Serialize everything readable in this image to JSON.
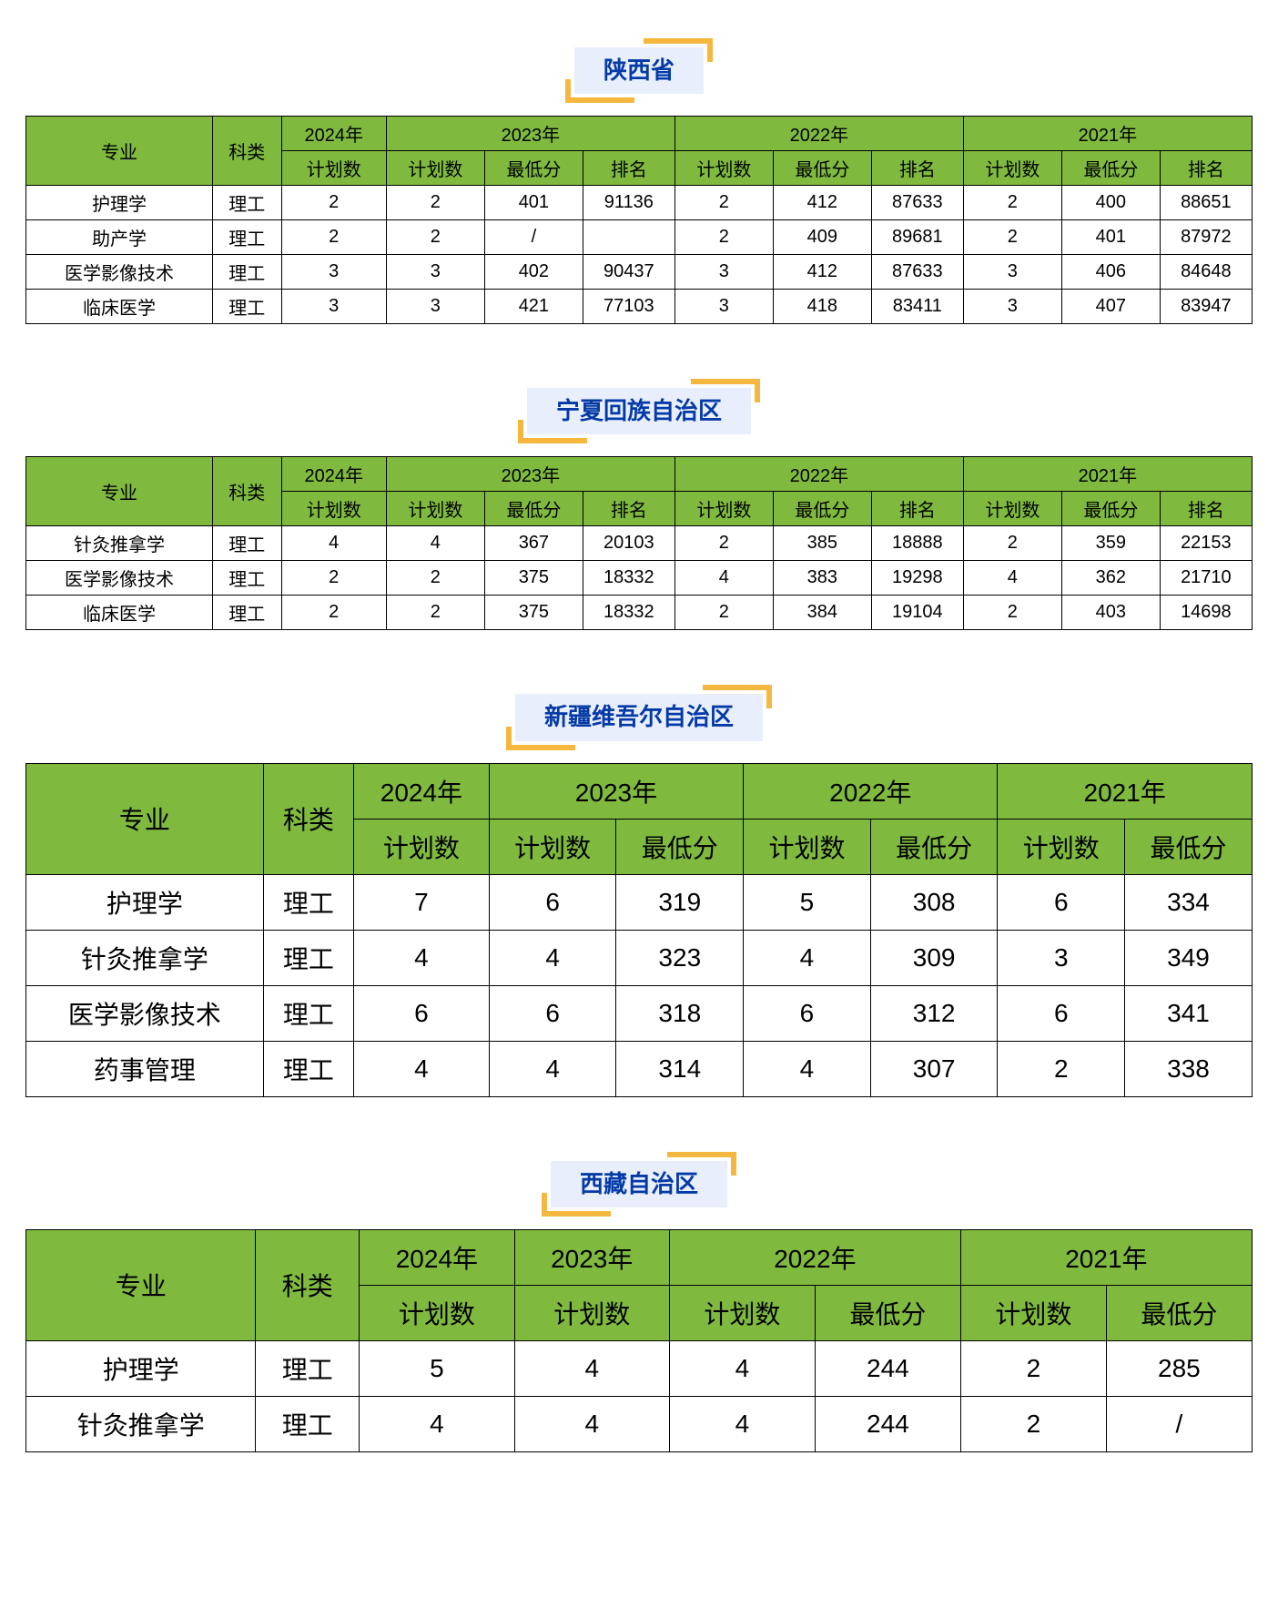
{
  "labels": {
    "major": "专业",
    "category": "科类",
    "plan": "计划数",
    "min_score": "最低分",
    "rank": "排名",
    "y2024": "2024年",
    "y2023": "2023年",
    "y2022": "2022年",
    "y2021": "2021年"
  },
  "category": "理工",
  "colors": {
    "header_bg": "#7fba3f",
    "title_bg": "#e9eefc",
    "title_text": "#043aa6",
    "corner": "#f6b73e"
  },
  "sections": [
    {
      "title": "陕西省",
      "size": "small",
      "years_have_rank": true,
      "rows": [
        {
          "major": "护理学",
          "p24": "2",
          "p23": "2",
          "s23": "401",
          "r23": "91136",
          "p22": "2",
          "s22": "412",
          "r22": "87633",
          "p21": "2",
          "s21": "400",
          "r21": "88651"
        },
        {
          "major": "助产学",
          "p24": "2",
          "p23": "2",
          "s23": "/",
          "r23": "",
          "p22": "2",
          "s22": "409",
          "r22": "89681",
          "p21": "2",
          "s21": "401",
          "r21": "87972"
        },
        {
          "major": "医学影像技术",
          "p24": "3",
          "p23": "3",
          "s23": "402",
          "r23": "90437",
          "p22": "3",
          "s22": "412",
          "r22": "87633",
          "p21": "3",
          "s21": "406",
          "r21": "84648"
        },
        {
          "major": "临床医学",
          "p24": "3",
          "p23": "3",
          "s23": "421",
          "r23": "77103",
          "p22": "3",
          "s22": "418",
          "r22": "83411",
          "p21": "3",
          "s21": "407",
          "r21": "83947"
        }
      ]
    },
    {
      "title": "宁夏回族自治区",
      "size": "small",
      "years_have_rank": true,
      "rows": [
        {
          "major": "针灸推拿学",
          "p24": "4",
          "p23": "4",
          "s23": "367",
          "r23": "20103",
          "p22": "2",
          "s22": "385",
          "r22": "18888",
          "p21": "2",
          "s21": "359",
          "r21": "22153"
        },
        {
          "major": "医学影像技术",
          "p24": "2",
          "p23": "2",
          "s23": "375",
          "r23": "18332",
          "p22": "4",
          "s22": "383",
          "r22": "19298",
          "p21": "4",
          "s21": "362",
          "r21": "21710"
        },
        {
          "major": "临床医学",
          "p24": "2",
          "p23": "2",
          "s23": "375",
          "r23": "18332",
          "p22": "2",
          "s22": "384",
          "r22": "19104",
          "p21": "2",
          "s21": "403",
          "r21": "14698"
        }
      ]
    },
    {
      "title": "新疆维吾尔自治区",
      "size": "big",
      "years_have_rank": false,
      "rows": [
        {
          "major": "护理学",
          "p24": "7",
          "p23": "6",
          "s23": "319",
          "p22": "5",
          "s22": "308",
          "p21": "6",
          "s21": "334"
        },
        {
          "major": "针灸推拿学",
          "p24": "4",
          "p23": "4",
          "s23": "323",
          "p22": "4",
          "s22": "309",
          "p21": "3",
          "s21": "349"
        },
        {
          "major": "医学影像技术",
          "p24": "6",
          "p23": "6",
          "s23": "318",
          "p22": "6",
          "s22": "312",
          "p21": "6",
          "s21": "341"
        },
        {
          "major": "药事管理",
          "p24": "4",
          "p23": "4",
          "s23": "314",
          "p22": "4",
          "s22": "307",
          "p21": "2",
          "s21": "338"
        }
      ]
    },
    {
      "title": "西藏自治区",
      "size": "big",
      "type": "tibet",
      "rows": [
        {
          "major": "护理学",
          "p24": "5",
          "p23": "4",
          "p22": "4",
          "s22": "244",
          "p21": "2",
          "s21": "285"
        },
        {
          "major": "针灸推拿学",
          "p24": "4",
          "p23": "4",
          "p22": "4",
          "s22": "244",
          "p21": "2",
          "s21": "/"
        }
      ]
    }
  ]
}
